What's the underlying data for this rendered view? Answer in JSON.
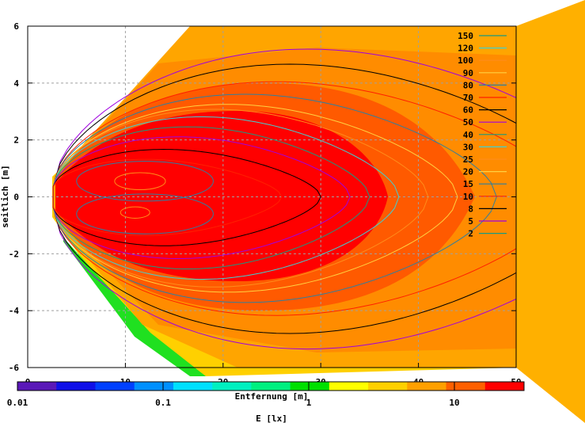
{
  "chart_data": {
    "type": "heatmap",
    "title": "",
    "xlabel": "Entfernung [m]",
    "ylabel": "seitlich [m]",
    "colorbar_label": "E [lx]",
    "xlim": [
      0,
      50
    ],
    "ylim": [
      -6,
      6
    ],
    "xticks": [
      "0",
      "10",
      "20",
      "30",
      "40",
      "50"
    ],
    "yticks": [
      "6",
      "4",
      "2",
      "0",
      "-2",
      "-4",
      "-6"
    ],
    "xtick_values": [
      0,
      10,
      20,
      30,
      40,
      50
    ],
    "ytick_values": [
      6,
      4,
      2,
      0,
      -2,
      -4,
      -6
    ],
    "grid": true,
    "colorbar": {
      "scale": "log",
      "ticks": [
        "0.01",
        "0.1",
        "1",
        "10"
      ],
      "tick_values": [
        0.01,
        0.1,
        1,
        10
      ],
      "range": [
        0.01,
        30
      ],
      "colors": [
        "#5a18b8",
        "#1010e8",
        "#0040ff",
        "#0090ff",
        "#00e0ff",
        "#00f0c0",
        "#00f080",
        "#00e000",
        "#ffff00",
        "#ffd000",
        "#ffa000",
        "#ff6000",
        "#ff0000"
      ]
    },
    "legend": {
      "placement": "top-right",
      "entries": [
        {
          "label": "150",
          "color": "#1a9a80"
        },
        {
          "label": "120",
          "color": "#40d0d0"
        },
        {
          "label": "100",
          "color": "#ff8c1a"
        },
        {
          "label": "90",
          "color": "#ffd040"
        },
        {
          "label": "80",
          "color": "#2e7fa0"
        },
        {
          "label": "70",
          "color": "#ff2000"
        },
        {
          "label": "60",
          "color": "#000000"
        },
        {
          "label": "50",
          "color": "#a000e0"
        },
        {
          "label": "40",
          "color": "#1a9a80"
        },
        {
          "label": "30",
          "color": "#40d0d0"
        },
        {
          "label": "25",
          "color": "#ff8c1a"
        },
        {
          "label": "20",
          "color": "#ffd040"
        },
        {
          "label": "15",
          "color": "#2e7fa0"
        },
        {
          "label": "10",
          "color": "#ff2000"
        },
        {
          "label": "8",
          "color": "#000000"
        },
        {
          "label": "5",
          "color": "#a000e0"
        },
        {
          "label": "2",
          "color": "#1a9a80"
        }
      ]
    },
    "contours": [
      {
        "level": 5,
        "xend": 62,
        "hmax": 5.7
      },
      {
        "level": 8,
        "xend": 58,
        "hmax": 5.1
      },
      {
        "level": 10,
        "xend": 55,
        "hmax": 4.4
      },
      {
        "level": 15,
        "xend": 48,
        "hmax": 3.9
      },
      {
        "level": 20,
        "xend": 44,
        "hmax": 3.5
      },
      {
        "level": 25,
        "xend": 41,
        "hmax": 3.3
      },
      {
        "level": 30,
        "xend": 38,
        "hmax": 3.0
      },
      {
        "level": 40,
        "xend": 35,
        "hmax": 2.6
      },
      {
        "level": 50,
        "xend": 33,
        "hmax": 2.2
      },
      {
        "level": 60,
        "xend": 30,
        "hmax": 1.7
      },
      {
        "level": 70,
        "xend": 26,
        "hmax": 1.3
      }
    ],
    "lobes": [
      {
        "level": 80,
        "cx": 12,
        "cy": 0.55,
        "rx": 7,
        "ry": 0.7
      },
      {
        "level": 80,
        "cx": 12,
        "cy": -0.6,
        "rx": 7,
        "ry": 0.7
      },
      {
        "level": 100,
        "cx": 11.5,
        "cy": 0.55,
        "rx": 2.6,
        "ry": 0.3
      },
      {
        "level": 100,
        "cx": 11,
        "cy": -0.55,
        "rx": 1.5,
        "ry": 0.2
      }
    ]
  }
}
